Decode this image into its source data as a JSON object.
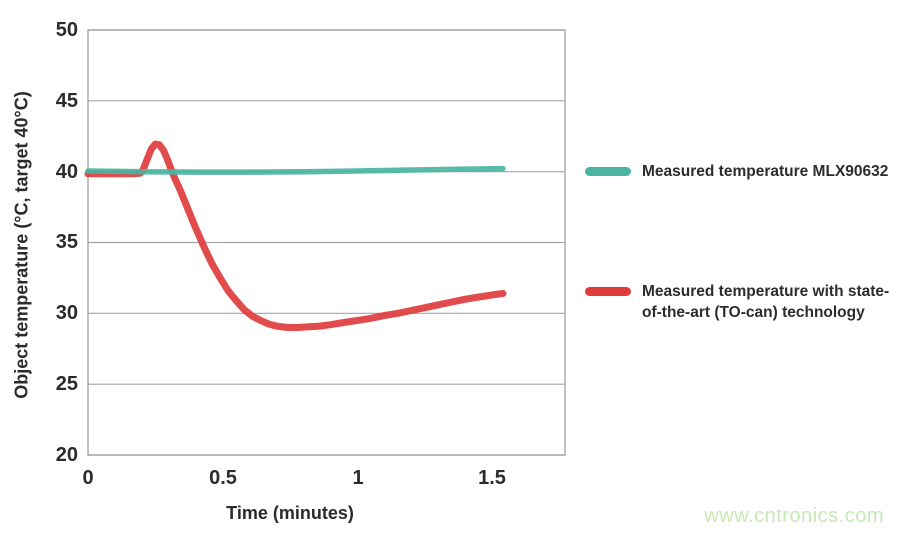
{
  "chart_data": {
    "type": "line",
    "title": "",
    "xlabel": "Time (minutes)",
    "ylabel": "Object temperature (°C, target 40°C)",
    "xlim": [
      0,
      1.77
    ],
    "ylim": [
      20,
      50
    ],
    "xticks": [
      0,
      0.5,
      1,
      1.5
    ],
    "xtick_labels": [
      "0",
      "0.5",
      "1",
      "1.5"
    ],
    "ytick_labels": [
      "50",
      "45",
      "40",
      "35",
      "30",
      "25",
      "20"
    ],
    "ytick_values": [
      50,
      45,
      40,
      35,
      30,
      25,
      20
    ],
    "grid": "horizontal-only",
    "grid_color": "#a6a6a6",
    "frame_color": "#999999",
    "legend_position": "right-outside",
    "series": [
      {
        "name": "Measured temperature MLX90632",
        "color": "#4ab5a1",
        "line_width": 5.5,
        "points": [
          [
            0,
            40.05
          ],
          [
            0.2,
            40.0
          ],
          [
            0.4,
            39.97
          ],
          [
            0.6,
            39.97
          ],
          [
            0.8,
            40.0
          ],
          [
            1.0,
            40.05
          ],
          [
            1.2,
            40.12
          ],
          [
            1.4,
            40.18
          ],
          [
            1.54,
            40.22
          ]
        ]
      },
      {
        "name": "Measured temperature with state-of-the-art (TO-can) technology",
        "color": "#e03c3c",
        "line_width": 7,
        "points": [
          [
            0,
            39.85
          ],
          [
            0.06,
            39.85
          ],
          [
            0.12,
            39.85
          ],
          [
            0.17,
            39.85
          ],
          [
            0.195,
            39.9
          ],
          [
            0.205,
            40.15
          ],
          [
            0.22,
            40.9
          ],
          [
            0.235,
            41.6
          ],
          [
            0.25,
            41.95
          ],
          [
            0.265,
            41.9
          ],
          [
            0.28,
            41.5
          ],
          [
            0.295,
            40.85
          ],
          [
            0.31,
            40.1
          ],
          [
            0.325,
            39.4
          ],
          [
            0.34,
            38.8
          ],
          [
            0.37,
            37.4
          ],
          [
            0.4,
            36.0
          ],
          [
            0.43,
            34.7
          ],
          [
            0.46,
            33.5
          ],
          [
            0.49,
            32.5
          ],
          [
            0.52,
            31.6
          ],
          [
            0.55,
            30.9
          ],
          [
            0.58,
            30.25
          ],
          [
            0.61,
            29.8
          ],
          [
            0.64,
            29.5
          ],
          [
            0.67,
            29.25
          ],
          [
            0.7,
            29.1
          ],
          [
            0.74,
            29.0
          ],
          [
            0.78,
            29.0
          ],
          [
            0.82,
            29.05
          ],
          [
            0.86,
            29.1
          ],
          [
            0.9,
            29.2
          ],
          [
            0.95,
            29.35
          ],
          [
            1.0,
            29.5
          ],
          [
            1.05,
            29.65
          ],
          [
            1.1,
            29.85
          ],
          [
            1.15,
            30.0
          ],
          [
            1.2,
            30.2
          ],
          [
            1.25,
            30.4
          ],
          [
            1.3,
            30.6
          ],
          [
            1.35,
            30.8
          ],
          [
            1.4,
            31.0
          ],
          [
            1.45,
            31.15
          ],
          [
            1.5,
            31.3
          ],
          [
            1.54,
            31.4
          ]
        ]
      }
    ]
  },
  "legend": {
    "items": [
      {
        "color": "#4ab5a1",
        "lines": [
          "Measured temperature MLX90632"
        ]
      },
      {
        "color": "#e03c3c",
        "lines": [
          "Measured temperature with state-",
          "of-the-art (TO-can) technology"
        ]
      }
    ]
  },
  "watermark": {
    "text": "www.cntronics.com",
    "color": "#c7e7b5"
  }
}
